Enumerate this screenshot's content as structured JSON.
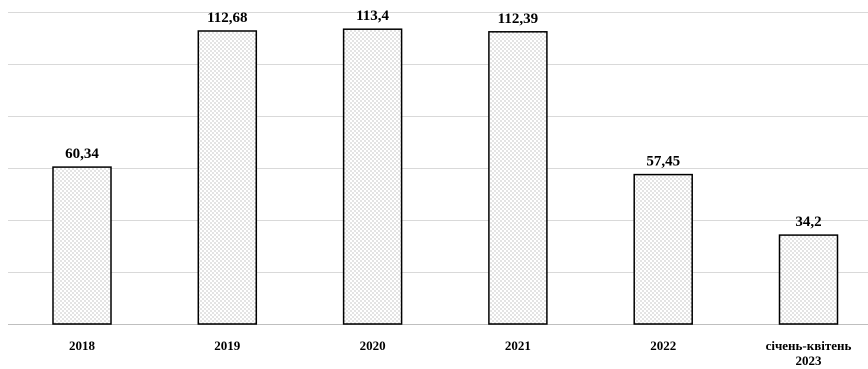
{
  "chart_data": {
    "type": "bar",
    "categories": [
      [
        "2018"
      ],
      [
        "2019"
      ],
      [
        "2020"
      ],
      [
        "2021"
      ],
      [
        "2022"
      ],
      [
        "січень-квітень",
        "2023"
      ]
    ],
    "values": [
      60.34,
      112.68,
      113.4,
      112.39,
      57.45,
      34.2
    ],
    "value_labels": [
      "60,34",
      "112,68",
      "113,4",
      "112,39",
      "57,45",
      "34,2"
    ],
    "title": "",
    "xlabel": "",
    "ylabel": "",
    "ylim": [
      0,
      120
    ],
    "gridlines": [
      20,
      40,
      60,
      80,
      100,
      120
    ],
    "grid": true,
    "legend": "none",
    "bar_fill": "dotted pattern",
    "colors": {
      "bar_fill": "#ffffff",
      "bar_dots": "#7a7a7a",
      "bar_stroke": "#000000",
      "grid": "#d9d9d9",
      "axis": "#bfbfbf",
      "text": "#000000"
    }
  }
}
